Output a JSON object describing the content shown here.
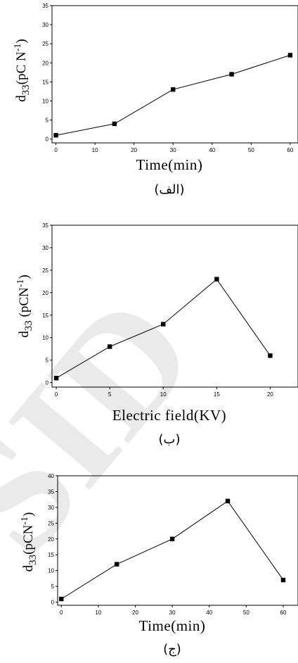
{
  "watermark": {
    "text": "SID",
    "color": "#cfcfcf"
  },
  "colors": {
    "line": "#000000",
    "marker": "#000000",
    "axis": "#000000"
  },
  "chart_data": [
    {
      "type": "line",
      "xlabel": "Time(min)",
      "ylabel": "d33(pCN-1)",
      "ylabel_parts": {
        "base": "d",
        "sub": "33",
        "unit": "(pC N",
        "sup": "-1",
        "close": ")"
      },
      "caption": "(الف)",
      "xlim": [
        -1,
        62
      ],
      "ylim": [
        -1,
        35
      ],
      "xticks": [
        0,
        10,
        20,
        30,
        40,
        50,
        60
      ],
      "yticks": [
        0,
        5,
        10,
        15,
        20,
        25,
        30,
        35
      ],
      "x": [
        0,
        15,
        30,
        45,
        60
      ],
      "y": [
        1,
        4,
        13,
        17,
        22
      ],
      "marker": "square",
      "grid": false,
      "legend": "none"
    },
    {
      "type": "line",
      "xlabel": "Electric field(KV)",
      "ylabel": "d33 (pCN-1)",
      "ylabel_parts": {
        "base": "d",
        "sub": "33",
        "unit": " (pCN",
        "sup": "-1",
        "close": ")"
      },
      "caption": "(ب)",
      "xlim": [
        -0.4,
        22.6
      ],
      "ylim": [
        -1,
        35
      ],
      "xticks": [
        0,
        5,
        10,
        15,
        20
      ],
      "yticks": [
        0,
        5,
        10,
        15,
        20,
        25,
        30,
        35
      ],
      "x": [
        0,
        5,
        10,
        15,
        20
      ],
      "y": [
        1,
        8,
        13,
        23,
        6
      ],
      "marker": "square",
      "grid": false,
      "legend": "none"
    },
    {
      "type": "line",
      "xlabel": "Time(min)",
      "ylabel": "d33(pCN-1)",
      "ylabel_parts": {
        "base": "d",
        "sub": "33",
        "unit": "(pCN",
        "sup": "-1",
        "close": ")"
      },
      "caption": "(ج)",
      "xlim": [
        -1,
        64
      ],
      "ylim": [
        -1,
        40
      ],
      "xticks": [
        0,
        10,
        20,
        30,
        40,
        50,
        60
      ],
      "yticks": [
        0,
        5,
        10,
        15,
        20,
        25,
        30,
        35,
        40
      ],
      "x": [
        0,
        15,
        30,
        45,
        60
      ],
      "y": [
        1,
        12,
        20,
        32,
        7
      ],
      "marker": "square",
      "grid": false,
      "legend": "none"
    }
  ]
}
